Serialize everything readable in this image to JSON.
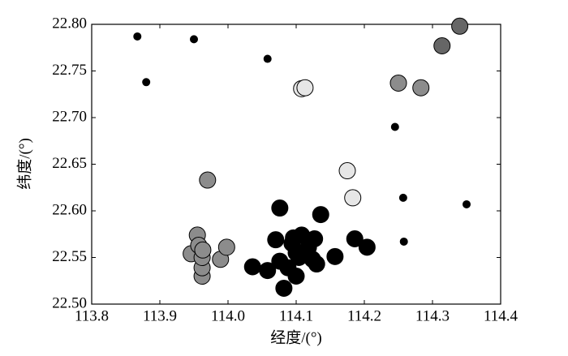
{
  "chart_data": {
    "type": "scatter",
    "xlabel": "经度/(°)",
    "ylabel": "纬度/(°)",
    "xlim": [
      113.8,
      114.4
    ],
    "xticks": [
      113.8,
      113.9,
      {
        "value": 114,
        "label": "114.0"
      },
      114.1,
      114.2,
      114.3,
      114.4
    ],
    "ylim": [
      22.5,
      22.8
    ],
    "yticks": [
      {
        "value": 22.5,
        "label": "22.50"
      },
      22.55,
      {
        "value": 22.6,
        "label": "22.60"
      },
      22.65,
      {
        "value": 22.7,
        "label": "22.70"
      },
      22.75,
      {
        "value": 22.8,
        "label": "22.80"
      }
    ],
    "series": [
      {
        "color": "#000000",
        "x": [
          113.867,
          113.88,
          113.95,
          114.058,
          114.245,
          114.257,
          114.35,
          114.258
        ],
        "y": [
          22.787,
          22.738,
          22.784,
          22.763,
          22.69,
          22.614,
          22.607,
          22.567
        ]
      },
      {
        "color": "#000000",
        "x": [
          114.036,
          114.058,
          114.07,
          114.076,
          114.076,
          114.082,
          114.088,
          114.094,
          114.096,
          114.1,
          114.1,
          114.104,
          114.108,
          114.118,
          114.124,
          114.127,
          114.13,
          114.136,
          114.157,
          114.186,
          114.204
        ],
        "y": [
          22.54,
          22.536,
          22.569,
          22.603,
          22.546,
          22.517,
          22.539,
          22.565,
          22.571,
          22.53,
          22.555,
          22.55,
          22.574,
          22.561,
          22.548,
          22.57,
          22.543,
          22.596,
          22.551,
          22.57,
          22.561
        ]
      },
      {
        "color": "#8c8c8c",
        "x": [
          113.946,
          113.955,
          113.957,
          113.962,
          113.962,
          113.962,
          113.963,
          113.989,
          113.998,
          113.97,
          114.25,
          114.283
        ],
        "y": [
          22.554,
          22.574,
          22.563,
          22.53,
          22.539,
          22.55,
          22.558,
          22.548,
          22.561,
          22.633,
          22.737,
          22.732
        ]
      },
      {
        "color": "#666666",
        "x": [
          114.314,
          114.34
        ],
        "y": [
          22.777,
          22.798
        ]
      },
      {
        "color": "#e6e6e6",
        "x": [
          114.108,
          114.113,
          114.175,
          114.183
        ],
        "y": [
          22.731,
          22.732,
          22.643,
          22.614
        ]
      }
    ]
  }
}
